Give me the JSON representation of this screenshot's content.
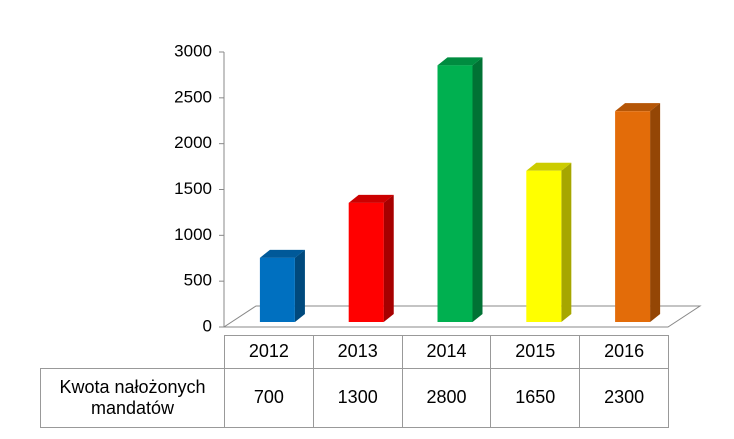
{
  "chart_data": {
    "type": "bar3d",
    "categories": [
      "2012",
      "2013",
      "2014",
      "2015",
      "2016"
    ],
    "series": [
      {
        "name": "Kwota nałożonych mandatów",
        "values": [
          700,
          1300,
          2800,
          1650,
          2300
        ]
      }
    ],
    "colors": [
      "#0070c0",
      "#ff0000",
      "#00b050",
      "#ffff00",
      "#e36c09"
    ],
    "ylim": [
      0,
      3000
    ],
    "yticks": [
      0,
      500,
      1000,
      1500,
      2000,
      2500,
      3000
    ]
  }
}
